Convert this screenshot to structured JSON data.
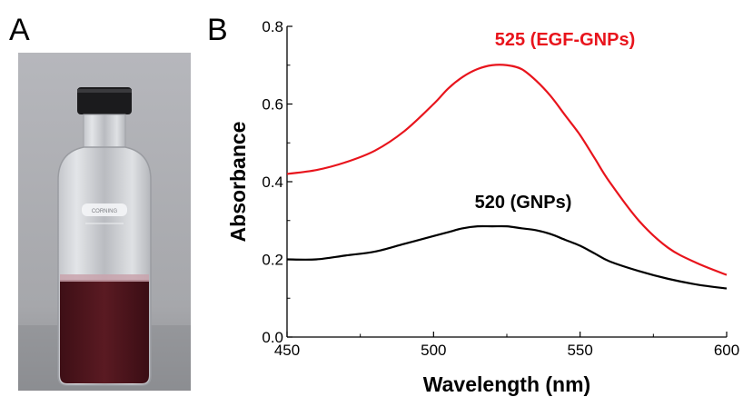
{
  "panels": {
    "a_label": "A",
    "b_label": "B"
  },
  "photo": {
    "bottle_label": "CORNING",
    "liquid_color": "#5a1a22"
  },
  "chart_data": {
    "type": "line",
    "title": "",
    "xlabel": "Wavelength (nm)",
    "ylabel": "Absorbance",
    "xlim": [
      450,
      600
    ],
    "ylim": [
      0.0,
      0.8
    ],
    "xticks": [
      450,
      500,
      550,
      600
    ],
    "yticks": [
      0.0,
      0.2,
      0.4,
      0.6,
      0.8
    ],
    "xtick_labels": [
      "450",
      "500",
      "550",
      "600"
    ],
    "ytick_labels": [
      "0.0",
      "0.2",
      "0.4",
      "0.6",
      "0.8"
    ],
    "grid": false,
    "series": [
      {
        "color": "#e8141c",
        "x": [
          450,
          460,
          470,
          480,
          490,
          500,
          505,
          510,
          515,
          520,
          525,
          530,
          535,
          540,
          545,
          550,
          555,
          560,
          570,
          580,
          590,
          600
        ],
        "y": [
          0.42,
          0.43,
          0.45,
          0.48,
          0.53,
          0.6,
          0.64,
          0.67,
          0.69,
          0.7,
          0.7,
          0.69,
          0.66,
          0.62,
          0.57,
          0.52,
          0.46,
          0.4,
          0.3,
          0.23,
          0.19,
          0.16
        ]
      },
      {
        "color": "#000000",
        "x": [
          450,
          460,
          470,
          480,
          490,
          500,
          505,
          510,
          515,
          520,
          525,
          530,
          535,
          540,
          545,
          550,
          555,
          560,
          570,
          580,
          590,
          600
        ],
        "y": [
          0.2,
          0.2,
          0.21,
          0.22,
          0.24,
          0.26,
          0.27,
          0.28,
          0.285,
          0.285,
          0.285,
          0.28,
          0.275,
          0.265,
          0.25,
          0.235,
          0.215,
          0.195,
          0.17,
          0.15,
          0.135,
          0.125
        ]
      }
    ],
    "annotations": [
      {
        "text": "525  (EGF-GNPs)",
        "color": "#e8141c"
      },
      {
        "text": "520  (GNPs)",
        "color": "#000000"
      }
    ]
  }
}
